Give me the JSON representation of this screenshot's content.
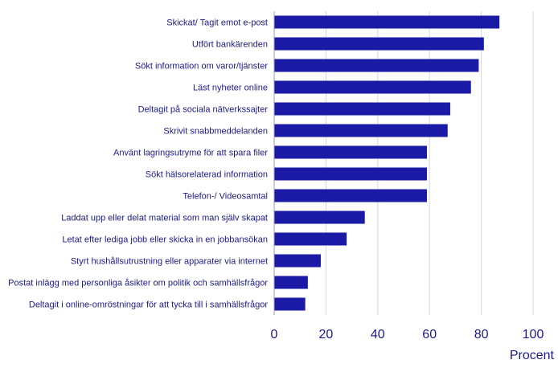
{
  "chart_data": {
    "type": "bar",
    "orientation": "horizontal",
    "categories": [
      "Skickat/ Tagit emot e-post",
      "Utfört bankärenden",
      "Sökt information om varor/tjänster",
      "Läst nyheter online",
      "Deltagit på sociala nätverkssajter",
      "Skrivit snabbmeddelanden",
      "Använt lagringsutryme för att spara filer",
      "Sökt hälsorelaterad information",
      "Telefon-/ Videosamtal",
      "Laddat upp eller delat material som man själv skapat",
      "Letat efter lediga jobb eller skicka in en jobbansökan",
      "Styrt hushållsutrustning eller apparater via internet",
      "Postat inlägg med personliga åsikter om politik och samhällsfrågor",
      "Deltagit i online-omröstningar för att tycka till i samhällsfrågor"
    ],
    "values": [
      87,
      81,
      79,
      76,
      68,
      67,
      59,
      59,
      59,
      35,
      28,
      18,
      13,
      12
    ],
    "xlabel": "Procent",
    "xlim": [
      0,
      100
    ],
    "xticks": [
      "0",
      "20",
      "40",
      "60",
      "80",
      "100"
    ],
    "grid": "vertical",
    "bar_color": "#1a1aa6",
    "text_color": "#1a1a8c",
    "grid_color": "#d4d4e8"
  }
}
